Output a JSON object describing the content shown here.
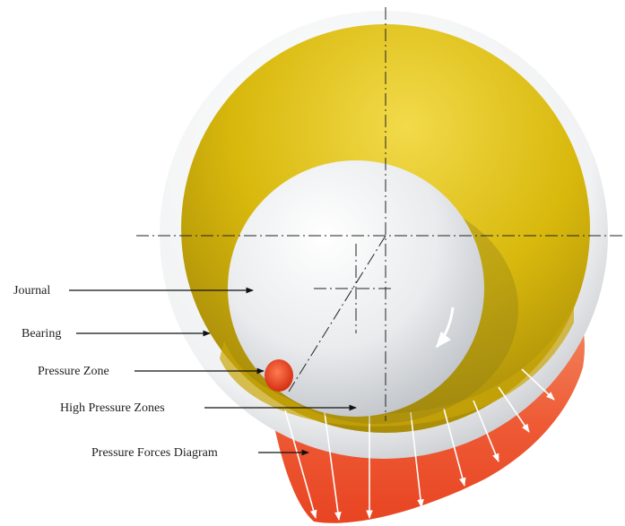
{
  "labels": {
    "journal": "Journal",
    "bearing": "Bearing",
    "pressure_zone": "Pressure Zone",
    "high_pressure_zones": "High Pressure Zones",
    "pressure_forces_diagram": "Pressure Forces Diagram"
  },
  "colors": {
    "bearing_gold": "#d8b80c",
    "bearing_gold_dark": "#9a7f08",
    "outer_ring": "#dcdfe2",
    "journal": "#e6e8ea",
    "pressure": "#ee5a35",
    "pressure_light": "#f7a07d",
    "pressure_zone": "#e53a1a",
    "leader": "#111111",
    "centerline": "#222222"
  },
  "icons": {
    "rotation": "curved-arrow-icon"
  }
}
